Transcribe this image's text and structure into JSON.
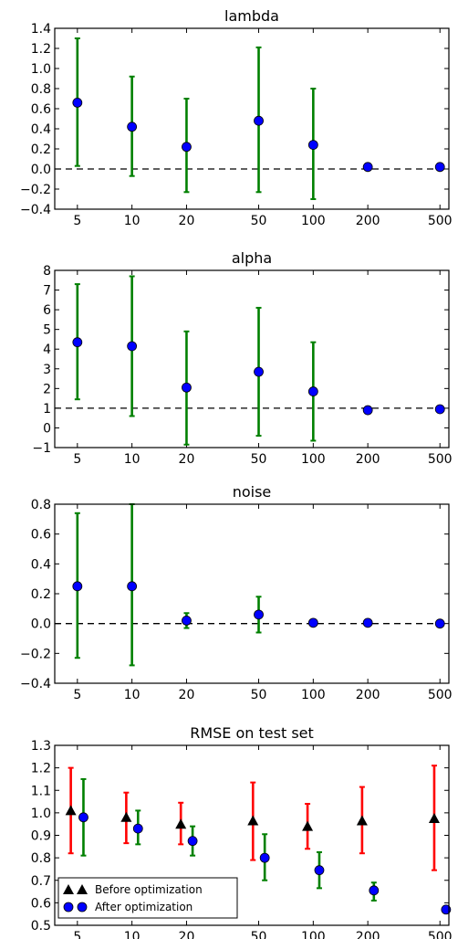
{
  "chart_data": [
    {
      "type": "scatter",
      "title": "lambda",
      "x": [
        5,
        10,
        20,
        50,
        100,
        200,
        500
      ],
      "x_tick_labels": [
        "5",
        "10",
        "20",
        "50",
        "100",
        "200",
        "500"
      ],
      "x_scale": "log",
      "xlim": [
        3.75,
        560
      ],
      "ylim": [
        -0.4,
        1.4
      ],
      "y_ticks": [
        -0.4,
        -0.2,
        0.0,
        0.2,
        0.4,
        0.6,
        0.8,
        1.0,
        1.2,
        1.4
      ],
      "y_tick_labels": [
        "−0.4",
        "−0.2",
        "0.0",
        "0.2",
        "0.4",
        "0.6",
        "0.8",
        "1.0",
        "1.2",
        "1.4"
      ],
      "reference_line": 0,
      "series": [
        {
          "marker": "circle",
          "color": "#0000ff",
          "errorbar_color": "#008000",
          "values": [
            0.66,
            0.42,
            0.22,
            0.48,
            0.24,
            0.02,
            0.02
          ],
          "err_low": [
            0.03,
            -0.07,
            -0.23,
            -0.23,
            -0.3,
            0.02,
            0.02
          ],
          "err_high": [
            1.3,
            0.92,
            0.7,
            1.21,
            0.8,
            0.02,
            0.02
          ]
        }
      ]
    },
    {
      "type": "scatter",
      "title": "alpha",
      "x": [
        5,
        10,
        20,
        50,
        100,
        200,
        500
      ],
      "x_tick_labels": [
        "5",
        "10",
        "20",
        "50",
        "100",
        "200",
        "500"
      ],
      "x_scale": "log",
      "xlim": [
        3.75,
        560
      ],
      "ylim": [
        -1,
        8
      ],
      "y_ticks": [
        -1,
        0,
        1,
        2,
        3,
        4,
        5,
        6,
        7,
        8
      ],
      "y_tick_labels": [
        "−1",
        "0",
        "1",
        "2",
        "3",
        "4",
        "5",
        "6",
        "7",
        "8"
      ],
      "reference_line": 1,
      "series": [
        {
          "marker": "circle",
          "color": "#0000ff",
          "errorbar_color": "#008000",
          "values": [
            4.35,
            4.15,
            2.05,
            2.85,
            1.85,
            0.9,
            0.95
          ],
          "err_low": [
            1.45,
            0.6,
            -0.85,
            -0.4,
            -0.65,
            0.9,
            0.95
          ],
          "err_high": [
            7.3,
            7.7,
            4.9,
            6.1,
            4.35,
            0.9,
            0.95
          ]
        }
      ]
    },
    {
      "type": "scatter",
      "title": "noise",
      "x": [
        5,
        10,
        20,
        50,
        100,
        200,
        500
      ],
      "x_tick_labels": [
        "5",
        "10",
        "20",
        "50",
        "100",
        "200",
        "500"
      ],
      "x_scale": "log",
      "xlim": [
        3.75,
        560
      ],
      "ylim": [
        -0.4,
        0.8
      ],
      "y_ticks": [
        -0.4,
        -0.2,
        0.0,
        0.2,
        0.4,
        0.6,
        0.8
      ],
      "y_tick_labels": [
        "−0.4",
        "−0.2",
        "0.0",
        "0.2",
        "0.4",
        "0.6",
        "0.8"
      ],
      "reference_line": 0,
      "series": [
        {
          "marker": "circle",
          "color": "#0000ff",
          "errorbar_color": "#008000",
          "values": [
            0.25,
            0.25,
            0.02,
            0.06,
            0.005,
            0.005,
            0.0
          ],
          "err_low": [
            -0.23,
            -0.28,
            -0.03,
            -0.06,
            0.005,
            0.005,
            0.0
          ],
          "err_high": [
            0.74,
            0.8,
            0.07,
            0.18,
            0.005,
            0.005,
            0.0
          ]
        }
      ]
    },
    {
      "type": "scatter",
      "title": "RMSE on test set",
      "x": [
        5,
        10,
        20,
        50,
        100,
        200,
        500
      ],
      "x_tick_labels": [
        "5",
        "10",
        "20",
        "50",
        "100",
        "200",
        "500"
      ],
      "x_scale": "log",
      "xlim": [
        3.75,
        560
      ],
      "ylim": [
        0.5,
        1.3
      ],
      "y_ticks": [
        0.5,
        0.6,
        0.7,
        0.8,
        0.9,
        1.0,
        1.1,
        1.2,
        1.3
      ],
      "y_tick_labels": [
        "0.5",
        "0.6",
        "0.7",
        "0.8",
        "0.9",
        "1.0",
        "1.1",
        "1.2",
        "1.3"
      ],
      "legend_position": "lower-left",
      "series": [
        {
          "name": "Before optimization",
          "marker": "triangle",
          "color": "#000000",
          "errorbar_color": "#ff0000",
          "x": [
            4.6,
            9.3,
            18.6,
            46.5,
            93,
            186,
            465
          ],
          "values": [
            1.01,
            0.98,
            0.95,
            0.965,
            0.94,
            0.965,
            0.975
          ],
          "err_low": [
            0.82,
            0.865,
            0.86,
            0.79,
            0.84,
            0.82,
            0.745
          ],
          "err_high": [
            1.2,
            1.09,
            1.045,
            1.135,
            1.04,
            1.115,
            1.21
          ]
        },
        {
          "name": "After optimization",
          "marker": "circle",
          "color": "#0000ff",
          "errorbar_color": "#008000",
          "x": [
            5.4,
            10.8,
            21.6,
            54,
            108,
            216,
            540
          ],
          "values": [
            0.98,
            0.93,
            0.875,
            0.8,
            0.745,
            0.655,
            0.57
          ],
          "err_low": [
            0.81,
            0.86,
            0.81,
            0.7,
            0.665,
            0.61,
            0.57
          ],
          "err_high": [
            1.15,
            1.01,
            0.94,
            0.905,
            0.825,
            0.69,
            0.57
          ]
        }
      ]
    }
  ]
}
